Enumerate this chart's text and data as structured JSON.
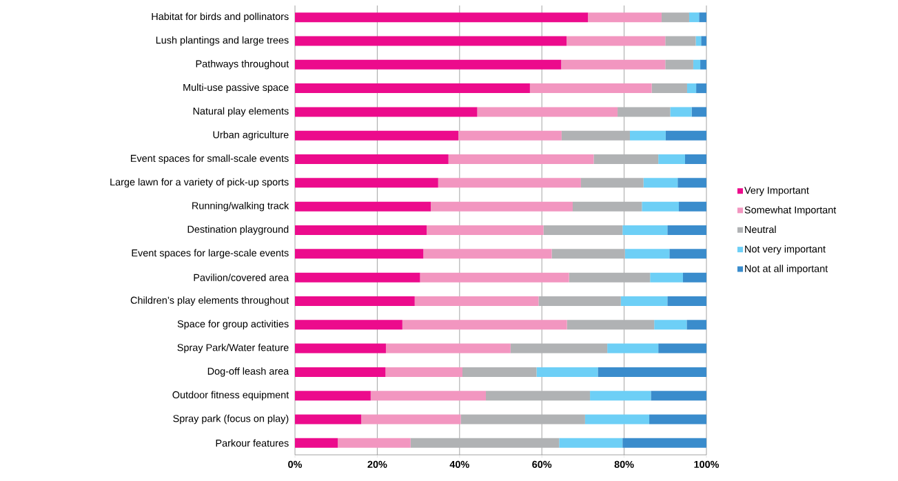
{
  "chart_data": {
    "type": "bar",
    "orientation": "horizontal",
    "stacked": true,
    "grid": "x",
    "legend": "right",
    "categories": [
      "Habitat for birds and pollinators",
      "Lush plantings and large trees",
      "Pathways throughout",
      "Multi-use passive space",
      "Natural play elements",
      "Urban agriculture",
      "Event spaces for small-scale events",
      "Large lawn for a variety of pick-up sports",
      "Running/walking track",
      "Destination playground",
      "Event spaces for large-scale events",
      "Pavilion/covered area",
      "Children’s play elements throughout",
      "Space for group activities",
      "Spray Park/Water feature",
      "Dog-off leash area",
      "Outdoor fitness equipment",
      "Spray park (focus on play)",
      "Parkour features"
    ],
    "xlim": [
      0,
      100
    ],
    "xticks": [
      {
        "value": 0,
        "label": "0%"
      },
      {
        "value": 20,
        "label": "20%"
      },
      {
        "value": 40,
        "label": "40%"
      },
      {
        "value": 60,
        "label": "60%"
      },
      {
        "value": 80,
        "label": "80%"
      },
      {
        "value": 100,
        "label": "100%"
      }
    ],
    "series": [
      {
        "name": "Very Important",
        "color": "#ec0b8c",
        "values": [
          71.2,
          66.0,
          64.7,
          57.1,
          44.3,
          39.7,
          37.3,
          34.8,
          33.0,
          32.0,
          31.2,
          30.4,
          29.1,
          26.1,
          22.1,
          22.0,
          18.4,
          16.1,
          10.4
        ]
      },
      {
        "name": "Somewhat Important",
        "color": "#f296c0",
        "values": [
          17.9,
          24.0,
          25.3,
          29.6,
          34.1,
          25.1,
          35.3,
          34.7,
          34.5,
          28.4,
          31.2,
          36.2,
          30.1,
          40.0,
          30.3,
          18.7,
          28.0,
          24.2,
          17.7
        ]
      },
      {
        "name": "Neutral",
        "color": "#b0b2b4",
        "values": [
          6.7,
          7.4,
          6.8,
          8.6,
          12.8,
          16.6,
          15.7,
          15.2,
          16.8,
          19.2,
          17.8,
          19.7,
          20.0,
          21.2,
          23.5,
          18.0,
          25.3,
          30.2,
          36.1
        ]
      },
      {
        "name": "Not very important",
        "color": "#6dcff6",
        "values": [
          2.4,
          1.3,
          1.7,
          2.2,
          5.2,
          8.7,
          6.5,
          8.3,
          9.0,
          10.9,
          10.8,
          8.0,
          11.3,
          7.9,
          12.4,
          14.9,
          14.8,
          15.6,
          15.4
        ]
      },
      {
        "name": "Not at all important",
        "color": "#3a8ccc",
        "values": [
          1.8,
          1.3,
          1.5,
          2.5,
          3.6,
          9.9,
          5.2,
          7.0,
          6.7,
          9.5,
          9.0,
          5.7,
          9.5,
          4.8,
          11.7,
          26.4,
          13.5,
          13.9,
          20.4
        ]
      }
    ]
  }
}
